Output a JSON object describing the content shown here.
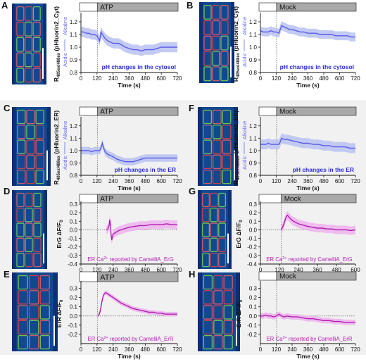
{
  "panels": [
    {
      "letter": "A"
    },
    {
      "letter": "B"
    },
    {
      "letter": "C"
    },
    {
      "letter": "D"
    },
    {
      "letter": "E"
    },
    {
      "letter": "F"
    },
    {
      "letter": "G"
    },
    {
      "letter": "H"
    }
  ],
  "colors": {
    "ph": "#5b5be6",
    "ph_band": "#b9c2f2",
    "ca": "#b01eb0",
    "ca_band": "#edb3ed",
    "bar_fill": "#a9a9a9",
    "grey_bg": "#f1f1f1"
  },
  "chart_data": [
    {
      "id": "A",
      "type": "line",
      "treatment": "ATP",
      "ylabel": "R405ex/488ex (pHluorin2_Cyt)",
      "ylabel_main": "R",
      "ylabel_sub": "405ex/488ex",
      "ylabel_rest": " (pHluorin2_Cyt)",
      "acidic": "Acidic",
      "alkaline": "Alkaline",
      "annotation": "pH changes in the cytosol",
      "yticks": [
        "0.8",
        "0.9",
        "1.0",
        "1.1",
        "1.2"
      ],
      "xticks": [
        "0",
        "120",
        "240",
        "360",
        "480",
        "600",
        "720"
      ],
      "xlabel": "Time (s)",
      "ylim": [
        0.8,
        1.25
      ],
      "xlim": [
        0,
        720
      ],
      "band": 0.04,
      "x": [
        0,
        20,
        40,
        60,
        80,
        100,
        120,
        140,
        150,
        160,
        180,
        200,
        220,
        240,
        260,
        280,
        300,
        330,
        360,
        390,
        420,
        450,
        480,
        510,
        540,
        570,
        600,
        630,
        660,
        690,
        720
      ],
      "y": [
        1.12,
        1.12,
        1.11,
        1.11,
        1.1,
        1.1,
        1.09,
        1.05,
        1.12,
        1.1,
        1.07,
        1.05,
        1.04,
        1.03,
        1.03,
        1.03,
        1.02,
        1.0,
        0.99,
        0.98,
        0.98,
        0.97,
        0.98,
        0.98,
        0.98,
        0.99,
        1.0,
        1.0,
        1.0,
        1.0,
        1.0
      ]
    },
    {
      "id": "B",
      "type": "line",
      "treatment": "Mock",
      "ylabel": "R405ex/488ex (pHluorin2_Cyt)",
      "ylabel_main": "R",
      "ylabel_sub": "405ex/488ex",
      "ylabel_rest": " (pHluorin2_Cyt)",
      "acidic": "Acidic",
      "alkaline": "Alkaline",
      "annotation": "pH changes in the cytosol",
      "yticks": [
        "0.8",
        "0.9",
        "1.0",
        "1.1",
        "1.2"
      ],
      "xticks": [
        "0",
        "120",
        "240",
        "360",
        "480",
        "600",
        "720"
      ],
      "xlabel": "Time (s)",
      "ylim": [
        0.8,
        1.25
      ],
      "xlim": [
        0,
        720
      ],
      "band": 0.035,
      "x": [
        0,
        20,
        40,
        60,
        80,
        100,
        120,
        140,
        150,
        160,
        180,
        200,
        220,
        240,
        270,
        300,
        330,
        360,
        390,
        420,
        450,
        480,
        510,
        540,
        570,
        600,
        630,
        660,
        690,
        720
      ],
      "y": [
        1.13,
        1.12,
        1.12,
        1.12,
        1.13,
        1.12,
        1.12,
        1.11,
        1.14,
        1.17,
        1.16,
        1.15,
        1.14,
        1.14,
        1.13,
        1.12,
        1.12,
        1.11,
        1.11,
        1.11,
        1.1,
        1.1,
        1.1,
        1.1,
        1.09,
        1.09,
        1.09,
        1.09,
        1.08,
        1.08
      ]
    },
    {
      "id": "C",
      "type": "line",
      "treatment": "ATP",
      "ylabel": "R405ex/488ex (pHluorin2_ER)",
      "ylabel_main": "R",
      "ylabel_sub": "405ex/488ex",
      "ylabel_rest": " (pHluorin2_ER)",
      "acidic": "Acidic",
      "alkaline": "Alkaline",
      "annotation": "pH changes in the ER",
      "yticks": [
        "0.8",
        "0.9",
        "1.0",
        "1.1",
        "1.2"
      ],
      "xticks": [
        "0",
        "120",
        "240",
        "360",
        "480",
        "600",
        "720"
      ],
      "xlabel": "Time (s)",
      "ylim": [
        0.8,
        1.25
      ],
      "xlim": [
        0,
        720
      ],
      "band": 0.03,
      "x": [
        0,
        20,
        40,
        60,
        80,
        100,
        120,
        140,
        150,
        160,
        170,
        180,
        200,
        220,
        240,
        270,
        300,
        330,
        360,
        390,
        420,
        450,
        480,
        510,
        540,
        570,
        600,
        630,
        660,
        690,
        720
      ],
      "y": [
        1.0,
        1.0,
        1.0,
        1.0,
        0.99,
        1.0,
        1.0,
        1.0,
        1.02,
        1.06,
        1.02,
        0.99,
        0.97,
        0.96,
        0.95,
        0.93,
        0.92,
        0.91,
        0.91,
        0.91,
        0.92,
        0.93,
        0.94,
        0.94,
        0.94,
        0.94,
        0.94,
        0.94,
        0.94,
        0.94,
        0.94
      ]
    },
    {
      "id": "D",
      "type": "line",
      "treatment": "ATP",
      "ylabel": "ErG ΔF/F0",
      "ylabel_main": "ErG ΔF/F",
      "ylabel_sub": "0",
      "ylabel_rest": "",
      "annotation": "ER Ca2+ reported by CamelliA_ErG",
      "ann_main": "ER Ca",
      "ann_sup": "2+",
      "ann_rest": " reported by CamelliA_ErG",
      "yticks": [
        "-0.4",
        "-0.3",
        "-0.2",
        "-0.1",
        "0.0",
        "0.1",
        "0.2",
        "0.3"
      ],
      "xticks": [
        "0",
        "120",
        "240",
        "360",
        "480",
        "600",
        "720"
      ],
      "xlabel": "Time (s)",
      "ylim": [
        -0.4,
        0.3
      ],
      "xlim": [
        0,
        720
      ],
      "band": 0.05,
      "zero_line": true,
      "x": [
        190,
        200,
        210,
        215,
        220,
        225,
        230,
        235,
        240,
        250,
        260,
        270,
        280,
        300,
        320,
        340,
        360,
        400,
        440,
        480,
        520,
        560,
        600,
        640,
        680,
        720
      ],
      "y": [
        0.0,
        0.01,
        0.05,
        0.12,
        0.07,
        -0.06,
        -0.12,
        -0.08,
        -0.05,
        -0.04,
        -0.03,
        -0.02,
        -0.01,
        0.0,
        0.01,
        0.02,
        0.03,
        0.04,
        0.05,
        0.05,
        0.06,
        0.06,
        0.06,
        0.07,
        0.06,
        0.06
      ]
    },
    {
      "id": "E",
      "type": "line",
      "treatment": "ATP",
      "ylabel": "ErR ΔF/F0",
      "ylabel_main": "ErR ΔF/F",
      "ylabel_sub": "0",
      "ylabel_rest": "",
      "annotation": "ER Ca2+ reported by CamelliA_ErR",
      "ann_main": "ER Ca",
      "ann_sup": "2+",
      "ann_rest": " reported by CamelliA_ErR",
      "yticks": [
        "-0.2",
        "-0.1",
        "0.0",
        "0.1",
        "0.2",
        "0.3"
      ],
      "xticks": [
        "0",
        "120",
        "240",
        "360",
        "480",
        "600",
        "720"
      ],
      "xlabel": "Time (s)",
      "ylim": [
        -0.3,
        0.35
      ],
      "xlim": [
        0,
        720
      ],
      "band": 0.025,
      "zero_line": true,
      "x": [
        130,
        140,
        150,
        160,
        170,
        180,
        190,
        200,
        220,
        240,
        260,
        280,
        300,
        330,
        360,
        390,
        420,
        450,
        480,
        510,
        540,
        570,
        600,
        630,
        660,
        690,
        720
      ],
      "y": [
        0.0,
        0.03,
        0.1,
        0.18,
        0.23,
        0.25,
        0.25,
        0.24,
        0.22,
        0.2,
        0.18,
        0.16,
        0.14,
        0.12,
        0.1,
        0.08,
        0.07,
        0.06,
        0.05,
        0.04,
        0.04,
        0.03,
        0.03,
        0.02,
        0.02,
        0.02,
        0.02
      ]
    },
    {
      "id": "F",
      "type": "line",
      "treatment": "Mock",
      "ylabel": "R405ex/488ex (pHluorin2_ER)",
      "ylabel_main": "R",
      "ylabel_sub": "405ex/488ex",
      "ylabel_rest": " (pHluorin2_ER)",
      "acidic": "Acidic",
      "alkaline": "Alkaline",
      "annotation": "pH changes in the ER",
      "yticks": [
        "0.8",
        "0.9",
        "1.0",
        "1.1",
        "1.2"
      ],
      "xticks": [
        "0",
        "120",
        "240",
        "360",
        "480",
        "600",
        "720"
      ],
      "xlabel": "Time (s)",
      "ylim": [
        0.8,
        1.25
      ],
      "xlim": [
        0,
        720
      ],
      "band": 0.04,
      "x": [
        0,
        20,
        40,
        60,
        80,
        100,
        120,
        140,
        150,
        160,
        180,
        200,
        240,
        280,
        320,
        360,
        400,
        440,
        480,
        520,
        560,
        600,
        640,
        680,
        720
      ],
      "y": [
        1.05,
        1.05,
        1.05,
        1.06,
        1.05,
        1.05,
        1.05,
        1.05,
        1.07,
        1.1,
        1.09,
        1.09,
        1.08,
        1.07,
        1.06,
        1.06,
        1.05,
        1.05,
        1.04,
        1.04,
        1.03,
        1.03,
        1.03,
        1.02,
        1.02
      ]
    },
    {
      "id": "G",
      "type": "line",
      "treatment": "Mock",
      "ylabel": "ErG ΔF/F0",
      "ylabel_main": "ErG ΔF/F",
      "ylabel_sub": "0",
      "ylabel_rest": "",
      "annotation": "ER Ca2+ reported by CamelliA_ErG",
      "ann_main": "ER Ca",
      "ann_sup": "2+",
      "ann_rest": " reported by CamelliA_ErG",
      "yticks": [
        "-0.4",
        "-0.3",
        "-0.2",
        "-0.1",
        "0.0",
        "0.1",
        "0.2",
        "0.3"
      ],
      "xticks": [
        "0",
        "120",
        "240",
        "360",
        "480",
        "600"
      ],
      "xlabel": "Time (s)",
      "ylim": [
        -0.4,
        0.3
      ],
      "xlim": [
        0,
        600
      ],
      "band": 0.05,
      "zero_line": true,
      "x": [
        130,
        140,
        150,
        160,
        170,
        180,
        190,
        200,
        220,
        240,
        260,
        280,
        300,
        330,
        360,
        390,
        420,
        450,
        480,
        510,
        540,
        570,
        600
      ],
      "y": [
        0.0,
        0.03,
        0.08,
        0.14,
        0.17,
        0.15,
        0.13,
        0.11,
        0.09,
        0.07,
        0.06,
        0.05,
        0.04,
        0.03,
        0.02,
        0.02,
        0.01,
        0.01,
        0.0,
        0.0,
        0.0,
        -0.01,
        0.0
      ]
    },
    {
      "id": "H",
      "type": "line",
      "treatment": "Mock",
      "ylabel": "ErR ΔF/F0",
      "ylabel_main": "ErR ΔF/F",
      "ylabel_sub": "0",
      "ylabel_rest": "",
      "annotation": "ER Ca2+ reported by CamelliA_ErR",
      "ann_main": "ER Ca",
      "ann_sup": "2+",
      "ann_rest": " reported by CamelliA_ErR",
      "yticks": [
        "-0.2",
        "-0.1",
        "0.0",
        "0.1",
        "0.2",
        "0.3"
      ],
      "xticks": [
        "0",
        "120",
        "240",
        "360",
        "480",
        "600",
        "720"
      ],
      "xlabel": "Time (s)",
      "ylim": [
        -0.3,
        0.35
      ],
      "xlim": [
        0,
        720
      ],
      "band": 0.03,
      "zero_line": true,
      "x": [
        0,
        20,
        40,
        60,
        80,
        100,
        120,
        140,
        150,
        160,
        180,
        200,
        240,
        280,
        320,
        360,
        400,
        440,
        480,
        520,
        560,
        600,
        640,
        680,
        720
      ],
      "y": [
        0.0,
        0.0,
        0.01,
        0.0,
        0.0,
        -0.01,
        0.0,
        0.02,
        0.01,
        0.0,
        -0.01,
        0.0,
        -0.01,
        -0.01,
        -0.02,
        -0.03,
        -0.03,
        -0.04,
        -0.05,
        -0.05,
        -0.06,
        -0.06,
        -0.07,
        -0.07,
        -0.07
      ]
    }
  ]
}
